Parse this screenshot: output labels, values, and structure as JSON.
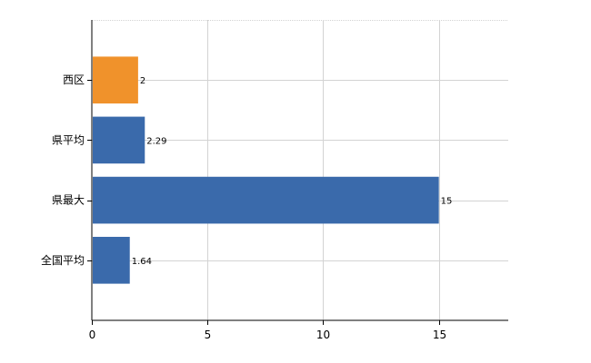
{
  "chart_data": {
    "type": "bar",
    "orientation": "horizontal",
    "categories": [
      "西区",
      "県平均",
      "県最大",
      "全国平均"
    ],
    "values": [
      2,
      2.29,
      15,
      1.64
    ],
    "data_labels": [
      "2",
      "2.29",
      "15",
      "1.64"
    ],
    "colors": [
      "#F0922B",
      "#3A6AAB",
      "#3A6AAB",
      "#3A6AAB"
    ],
    "xlim": [
      0,
      18
    ],
    "xticks": [
      0,
      5,
      10,
      15
    ],
    "xtick_labels": [
      "0",
      "5",
      "10",
      "15"
    ],
    "grid": true,
    "title": "",
    "xlabel": "",
    "ylabel": ""
  }
}
